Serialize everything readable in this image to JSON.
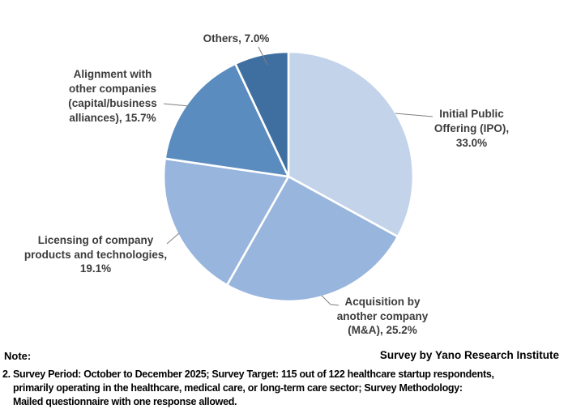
{
  "page": {
    "background": "#ffffff"
  },
  "chart_data": {
    "type": "pie",
    "title": "",
    "start_angle_deg": 0,
    "direction": "clockwise",
    "border_color": "#ffffff",
    "label_color": "#3c3c3c",
    "leader_line_color": "#7f7f7f",
    "legend_position": "none",
    "slices": [
      {
        "id": "ipo",
        "label": "Initial Public Offering (IPO)",
        "value": 33.0,
        "color": "#c3d3ea",
        "display": "Initial Public\nOffering (IPO),\n33.0%"
      },
      {
        "id": "ma",
        "label": "Acquisition by another company (M&A)",
        "value": 25.2,
        "color": "#97b5dd",
        "display": "Acquisition by\nanother company\n(M&A), 25.2%"
      },
      {
        "id": "licensing",
        "label": "Licensing of company products and technologies",
        "value": 19.1,
        "color": "#97b5dd",
        "display": "Licensing of company\nproducts and technologies,\n19.1%"
      },
      {
        "id": "alliance",
        "label": "Alignment with other companies (capital/business alliances)",
        "value": 15.7,
        "color": "#5b8cc0",
        "display": "Alignment with\nother companies\n(capital/business\nalliances), 15.7%"
      },
      {
        "id": "others",
        "label": "Others",
        "value": 7.0,
        "color": "#3f6fa0",
        "display": "Others, 7.0%"
      }
    ]
  },
  "footer": {
    "note_label": "Note:",
    "attribution": "Survey by Yano Research Institute",
    "note_lines": [
      "2. Survey Period: October to December 2025; Survey Target: 115 out of 122 healthcare startup respondents,",
      "primarily operating in the healthcare, medical care, or long-term care sector; Survey Methodology:",
      "Mailed questionnaire with one response allowed."
    ]
  }
}
